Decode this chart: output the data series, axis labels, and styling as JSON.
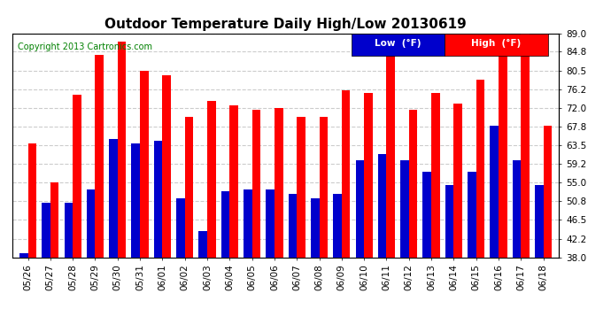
{
  "title": "Outdoor Temperature Daily High/Low 20130619",
  "copyright": "Copyright 2013 Cartronics.com",
  "legend_low": "Low  (°F)",
  "legend_high": "High  (°F)",
  "ylabel_right_ticks": [
    38.0,
    42.2,
    46.5,
    50.8,
    55.0,
    59.2,
    63.5,
    67.8,
    72.0,
    76.2,
    80.5,
    84.8,
    89.0
  ],
  "ylim": [
    38.0,
    89.0
  ],
  "categories": [
    "05/26",
    "05/27",
    "05/28",
    "05/29",
    "05/30",
    "05/31",
    "06/01",
    "06/02",
    "06/03",
    "06/04",
    "06/05",
    "06/06",
    "06/07",
    "06/08",
    "06/09",
    "06/10",
    "06/11",
    "06/12",
    "06/13",
    "06/14",
    "06/15",
    "06/16",
    "06/17",
    "06/18"
  ],
  "high_values": [
    64.0,
    55.0,
    75.0,
    84.0,
    87.0,
    80.5,
    79.5,
    70.0,
    73.5,
    72.5,
    71.5,
    72.0,
    70.0,
    70.0,
    76.0,
    75.5,
    86.0,
    71.5,
    75.5,
    73.0,
    78.5,
    86.0,
    89.5,
    68.0
  ],
  "low_values": [
    39.0,
    50.5,
    50.5,
    53.5,
    65.0,
    64.0,
    64.5,
    51.5,
    44.0,
    53.0,
    53.5,
    53.5,
    52.5,
    51.5,
    52.5,
    60.0,
    61.5,
    60.0,
    57.5,
    54.5,
    57.5,
    68.0,
    60.0,
    54.5
  ],
  "bar_color_high": "#ff0000",
  "bar_color_low": "#0000cc",
  "bg_color": "#ffffff",
  "plot_bg_color": "#ffffff",
  "grid_color": "#cccccc",
  "title_fontsize": 11,
  "copyright_fontsize": 7,
  "tick_fontsize": 7.5,
  "bar_width": 0.38
}
